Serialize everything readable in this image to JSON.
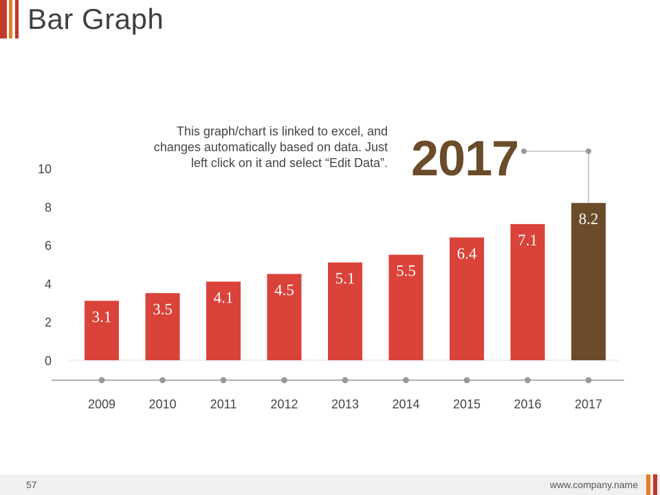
{
  "slide": {
    "title": "Bar Graph",
    "note": "This graph/chart is linked to excel, and changes automatically based on data. Just left click on it and select “Edit Data”.",
    "highlight_year": "2017",
    "page_number": "57",
    "website": "www.company.name"
  },
  "colors": {
    "bar": "#d9433a",
    "highlight_bar": "#6b4c2a",
    "accent_red": "#c0392b",
    "accent_orange": "#e67e22",
    "axis": "#999999",
    "text": "#444444"
  },
  "chart_data": {
    "type": "bar",
    "categories": [
      "2009",
      "2010",
      "2011",
      "2012",
      "2013",
      "2014",
      "2015",
      "2016",
      "2017"
    ],
    "values": [
      3.1,
      3.5,
      4.1,
      4.5,
      5.1,
      5.5,
      6.4,
      7.1,
      8.2
    ],
    "value_labels": [
      "3.1",
      "3.5",
      "4.1",
      "4.5",
      "5.1",
      "5.5",
      "6.4",
      "7.1",
      "8.2"
    ],
    "ylim": [
      0,
      10
    ],
    "yticks": [
      "0",
      "2",
      "4",
      "6",
      "8",
      "10"
    ],
    "highlight_category": "2017",
    "grid": false
  }
}
